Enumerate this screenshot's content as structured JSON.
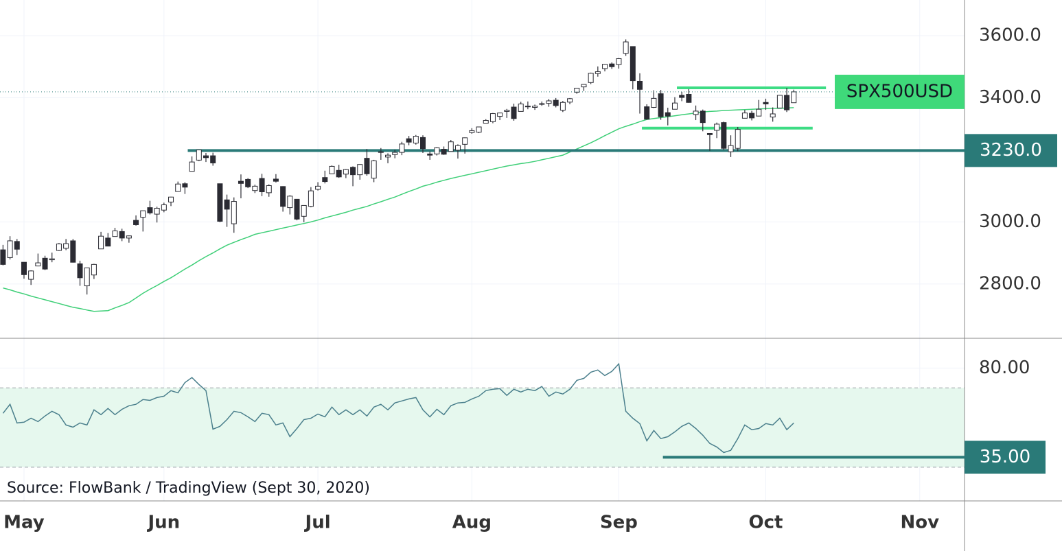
{
  "source": "Source: FlowBank / TradingView (Sept 30, 2020)",
  "chart_data": [
    {
      "type": "candlestick",
      "name": "SPX500USD",
      "xlim": [
        -0.43,
        137.4
      ],
      "xticks": [
        {
          "value": 3,
          "label": "May"
        },
        {
          "value": 23,
          "label": "Jun"
        },
        {
          "value": 45,
          "label": "Jul"
        },
        {
          "value": 67,
          "label": "Aug"
        },
        {
          "value": 88,
          "label": "Sep"
        },
        {
          "value": 109,
          "label": "Oct"
        },
        {
          "value": 131,
          "label": "Nov"
        }
      ],
      "ylim": [
        2625,
        3715
      ],
      "yticks": [
        {
          "value": 2800,
          "label": "2800.0"
        },
        {
          "value": 3000,
          "label": "3000.0"
        },
        {
          "value": 3400,
          "label": "3400.0"
        },
        {
          "value": 3600,
          "label": "3600.0"
        }
      ],
      "grid": true,
      "up_color": "#ffffff",
      "down_color": "#2b2b33",
      "label_color": "#3fd97a",
      "open": [
        2910,
        2885,
        2937,
        2870,
        2815,
        2858,
        2883,
        2878,
        2908,
        2915,
        2939,
        2865,
        2794,
        2829,
        2913,
        2948,
        2953,
        2969,
        2948,
        3005,
        3015,
        3046,
        3025,
        3038,
        3064,
        3098,
        3123,
        3163,
        3199,
        3213,
        3213,
        3123,
        3071,
        2994,
        3131,
        3137,
        3101,
        3140,
        3094,
        3138,
        3114,
        3046,
        3073,
        3018,
        3050,
        3105,
        3143,
        3155,
        3166,
        3154,
        3176,
        3152,
        3205,
        3141,
        3226,
        3209,
        3217,
        3224,
        3268,
        3254,
        3272,
        3219,
        3219,
        3234,
        3227,
        3231,
        3250,
        3288,
        3289,
        3318,
        3323,
        3340,
        3356,
        3370,
        3356,
        3372,
        3369,
        3380,
        3382,
        3392,
        3360,
        3386,
        3418,
        3435,
        3449,
        3478,
        3494,
        3509,
        3507,
        3543,
        3565,
        3453,
        3371,
        3369,
        3413,
        3352,
        3363,
        3408,
        3411,
        3346,
        3357,
        3285,
        3295,
        3320,
        3226,
        3237,
        3334,
        3350,
        3341,
        3385,
        3338,
        3367,
        3408,
        3384
      ],
      "high": [
        2926,
        2954,
        2945,
        2870,
        2844,
        2898,
        2891,
        2901,
        2932,
        2945,
        2945,
        2875,
        2852,
        2865,
        2968,
        2964,
        2981,
        2978,
        2956,
        3021,
        3036,
        3068,
        3049,
        3062,
        3081,
        3130,
        3128,
        3211,
        3233,
        3222,
        3223,
        3123,
        3088,
        3079,
        3153,
        3141,
        3120,
        3155,
        3121,
        3154,
        3115,
        3086,
        3073,
        3053,
        3112,
        3128,
        3165,
        3182,
        3184,
        3171,
        3179,
        3186,
        3235,
        3200,
        3238,
        3221,
        3233,
        3258,
        3277,
        3280,
        3279,
        3227,
        3241,
        3243,
        3264,
        3250,
        3272,
        3302,
        3306,
        3331,
        3351,
        3352,
        3364,
        3381,
        3387,
        3388,
        3378,
        3388,
        3396,
        3399,
        3390,
        3399,
        3432,
        3444,
        3481,
        3501,
        3509,
        3514,
        3528,
        3588,
        3565,
        3479,
        3379,
        3424,
        3425,
        3368,
        3402,
        3419,
        3428,
        3375,
        3362,
        3285,
        3320,
        3323,
        3279,
        3306,
        3361,
        3358,
        3393,
        3397,
        3369,
        3409,
        3432,
        3426
      ],
      "low": [
        2860,
        2879,
        2893,
        2817,
        2797,
        2857,
        2845,
        2870,
        2906,
        2909,
        2869,
        2794,
        2766,
        2816,
        2913,
        2922,
        2953,
        2938,
        2933,
        2988,
        2969,
        3024,
        2998,
        3031,
        3051,
        3098,
        3090,
        3163,
        3196,
        3193,
        3181,
        2999,
        2984,
        2965,
        3076,
        3109,
        3093,
        3083,
        3081,
        3127,
        3033,
        3024,
        3005,
        2999,
        3047,
        3101,
        3124,
        3155,
        3142,
        3141,
        3115,
        3136,
        3149,
        3128,
        3200,
        3189,
        3205,
        3215,
        3247,
        3249,
        3222,
        3200,
        3214,
        3216,
        3227,
        3204,
        3220,
        3284,
        3286,
        3317,
        3318,
        3328,
        3335,
        3326,
        3356,
        3363,
        3361,
        3374,
        3371,
        3369,
        3354,
        3379,
        3413,
        3422,
        3444,
        3468,
        3485,
        3493,
        3494,
        3535,
        3427,
        3349,
        3329,
        3367,
        3329,
        3311,
        3363,
        3389,
        3384,
        3328,
        3292,
        3229,
        3270,
        3232,
        3209,
        3228,
        3334,
        3327,
        3340,
        3361,
        3323,
        3367,
        3354,
        3384
      ],
      "close": [
        2863,
        2939,
        2912,
        2830,
        2842,
        2868,
        2848,
        2881,
        2929,
        2930,
        2870,
        2820,
        2852,
        2863,
        2954,
        2922,
        2971,
        2948,
        2955,
        2991,
        3036,
        3029,
        3044,
        3055,
        3080,
        3122,
        3112,
        3193,
        3232,
        3207,
        3190,
        3002,
        3041,
        3066,
        3124,
        3113,
        3115,
        3097,
        3117,
        3131,
        3050,
        3083,
        3009,
        3053,
        3100,
        3115,
        3130,
        3179,
        3145,
        3169,
        3152,
        3185,
        3155,
        3197,
        3226,
        3215,
        3224,
        3251,
        3257,
        3276,
        3236,
        3215,
        3239,
        3218,
        3258,
        3246,
        3271,
        3294,
        3306,
        3327,
        3349,
        3351,
        3360,
        3333,
        3380,
        3373,
        3373,
        3381,
        3390,
        3375,
        3385,
        3397,
        3431,
        3443,
        3479,
        3484,
        3508,
        3500,
        3526,
        3580,
        3455,
        3427,
        3331,
        3398,
        3339,
        3341,
        3383,
        3401,
        3385,
        3357,
        3320,
        3281,
        3315,
        3237,
        3246,
        3298,
        3351,
        3335,
        3363,
        3380,
        3348,
        3408,
        3361,
        3419
      ],
      "ma": {
        "color": "#3fcf78",
        "values": [
          2787,
          2781,
          2774,
          2768,
          2761,
          2755,
          2749,
          2743,
          2737,
          2731,
          2725,
          2721,
          2716,
          2712,
          2713,
          2714,
          2723,
          2731,
          2740,
          2755,
          2770,
          2783,
          2795,
          2808,
          2820,
          2834,
          2848,
          2861,
          2875,
          2888,
          2900,
          2913,
          2925,
          2934,
          2943,
          2951,
          2960,
          2965,
          2970,
          2975,
          2980,
          2985,
          2990,
          2995,
          3000,
          3006,
          3013,
          3019,
          3025,
          3031,
          3038,
          3044,
          3050,
          3058,
          3065,
          3073,
          3080,
          3089,
          3098,
          3106,
          3115,
          3121,
          3128,
          3134,
          3140,
          3145,
          3150,
          3155,
          3160,
          3165,
          3170,
          3175,
          3180,
          3184,
          3188,
          3191,
          3195,
          3200,
          3205,
          3210,
          3215,
          3225,
          3235,
          3245,
          3255,
          3266,
          3278,
          3289,
          3300,
          3308,
          3315,
          3323,
          3330,
          3333,
          3336,
          3339,
          3342,
          3345,
          3348,
          3351,
          3354,
          3356,
          3357,
          3359,
          3360,
          3361,
          3362,
          3363,
          3364,
          3365,
          3366,
          3366,
          3367,
          3368
        ]
      },
      "lines": [
        {
          "value": 3230,
          "label": "3230.0",
          "color": "#2a7a78",
          "from": 26.4
        },
        {
          "value": 3432,
          "color": "#3ddc84",
          "from": 96.3,
          "to": 117.6
        },
        {
          "value": 3302,
          "color": "#3ddc84",
          "from": 91.3,
          "to": 115.7
        }
      ]
    },
    {
      "type": "line",
      "color": "#4a7f8c",
      "ylim": [
        13,
        95
      ],
      "yticks": [
        {
          "value": 80,
          "label": "80.00"
        }
      ],
      "band": [
        30,
        70
      ],
      "band_color": "#e6f8ee",
      "values": [
        57.2,
        61.7,
        52.3,
        52.7,
        54.7,
        53,
        55.8,
        58.2,
        56.5,
        51.3,
        50.2,
        52.3,
        51.3,
        58.9,
        56.5,
        59.6,
        56.5,
        59.2,
        61,
        61.7,
        64.1,
        63.7,
        65.1,
        65.8,
        68.6,
        67.5,
        72.7,
        75.2,
        71.7,
        68.6,
        49.2,
        50.6,
        54,
        58.2,
        57.5,
        55.4,
        53,
        57.2,
        56.5,
        51.3,
        52.3,
        45.4,
        49.5,
        54,
        54.7,
        56.8,
        55.4,
        60.3,
        56.5,
        58.9,
        56.5,
        58.9,
        55.8,
        60.3,
        61.7,
        58.9,
        62.4,
        63.4,
        64.4,
        65.1,
        58.9,
        55.4,
        59.2,
        56.5,
        61,
        62.4,
        62.7,
        64.4,
        65.8,
        68.6,
        69.3,
        69.6,
        66.2,
        69.3,
        67.9,
        69.3,
        68.6,
        70.7,
        65.8,
        67.9,
        66.9,
        69.3,
        73.8,
        74.8,
        77.9,
        79,
        76.2,
        78.3,
        82.1,
        58.2,
        54.7,
        52,
        43.3,
        48.5,
        44.4,
        45.4,
        47.8,
        50.6,
        52.3,
        49.5,
        46.1,
        42,
        40.2,
        37.4,
        38.5,
        44.4,
        51.3,
        48.9,
        49.5,
        52,
        51.3,
        54.7,
        48.9,
        52.3
      ],
      "lines": [
        {
          "value": 35,
          "label": "35.00",
          "color": "#2a7a78",
          "from": 94.3
        }
      ]
    }
  ]
}
